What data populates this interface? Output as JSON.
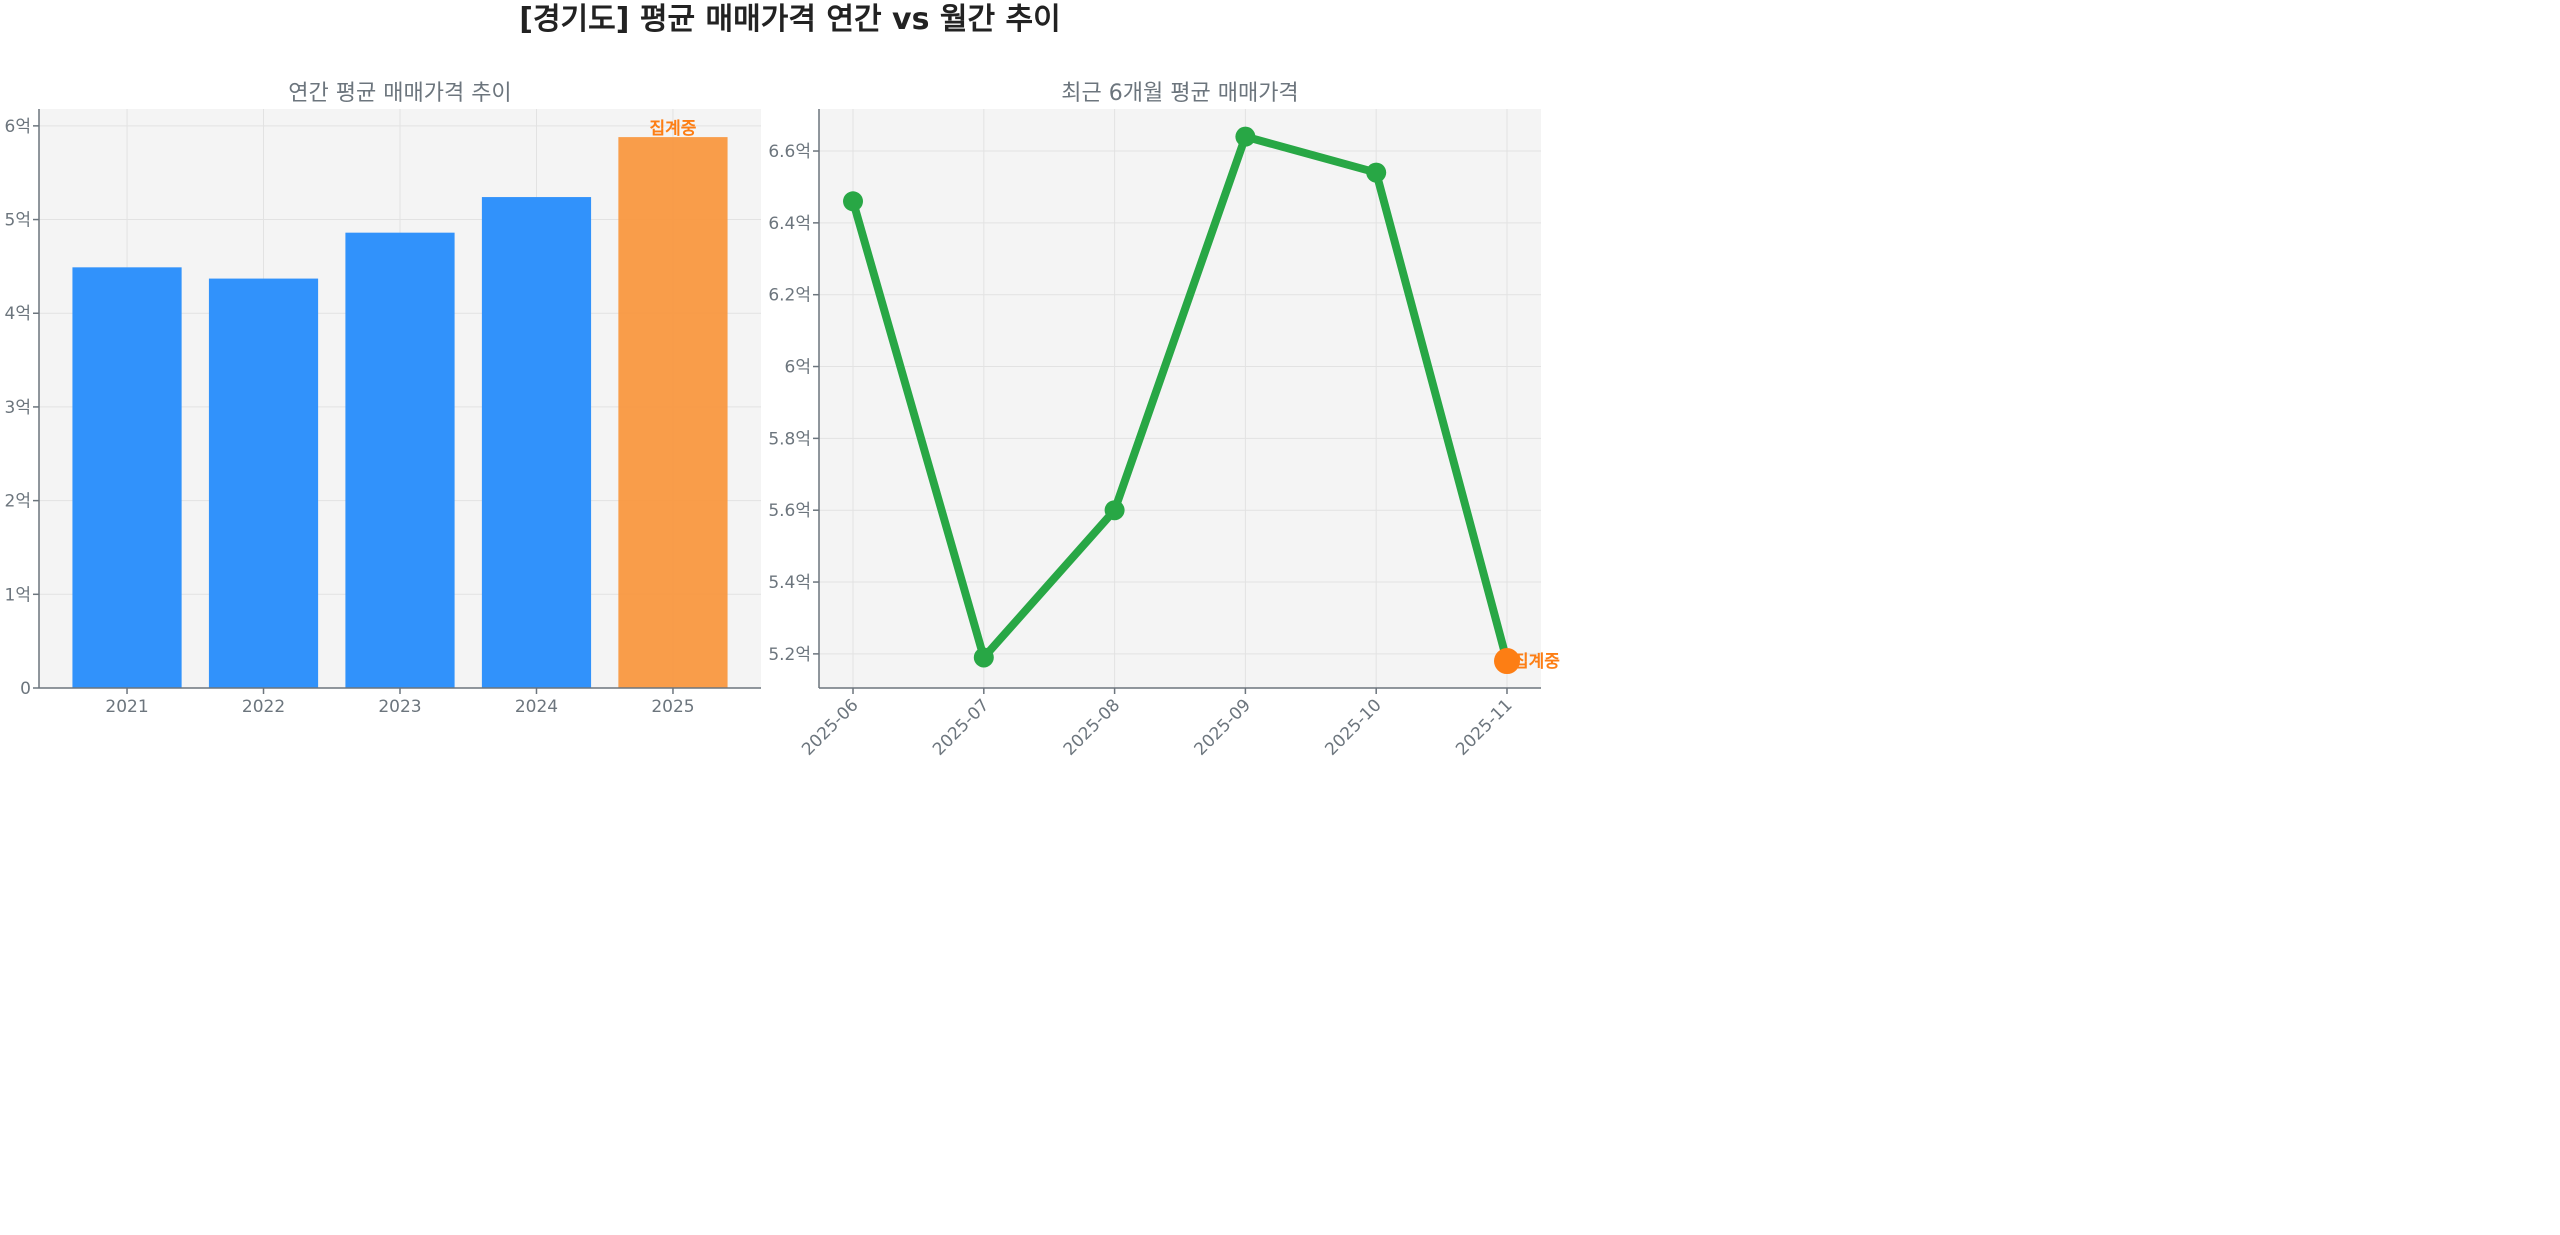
{
  "title": "[경기도] 평균 매매가격 연간 vs 월간 추이",
  "colors": {
    "bar": "#3192fb",
    "bar_highlight": "#f99840",
    "line": "#28a745",
    "marker_highlight": "#fd7e14",
    "annotation": "#fd7e14",
    "axis_text": "#6c757d",
    "plot_bg": "#f4f4f4"
  },
  "chart_data": [
    {
      "type": "bar",
      "title": "연간 평균 매매가격 추이",
      "categories": [
        "2021",
        "2022",
        "2023",
        "2024",
        "2025"
      ],
      "values": [
        4.49,
        4.37,
        4.86,
        5.24,
        5.88
      ],
      "unit": "억",
      "ylim": [
        0,
        6.18
      ],
      "yticks": [
        0,
        1,
        2,
        3,
        4,
        5,
        6
      ],
      "ytick_labels": [
        "0",
        "1억",
        "2억",
        "3억",
        "4억",
        "5억",
        "6억"
      ],
      "highlight_index": 4,
      "annotation": {
        "category": "2025",
        "text": "집계중"
      },
      "grid": true
    },
    {
      "type": "line",
      "title": "최근 6개월 평균 매매가격",
      "categories": [
        "2025-06",
        "2025-07",
        "2025-08",
        "2025-09",
        "2025-10",
        "2025-11"
      ],
      "values": [
        6.46,
        5.19,
        5.6,
        6.64,
        6.54,
        5.18
      ],
      "unit": "억",
      "ylim": [
        5.105,
        6.717
      ],
      "yticks": [
        5.2,
        5.4,
        5.6,
        5.8,
        6.0,
        6.2,
        6.4,
        6.6
      ],
      "ytick_labels": [
        "5.2억",
        "5.4억",
        "5.6억",
        "5.8억",
        "6억",
        "6.2억",
        "6.4억",
        "6.6억"
      ],
      "highlight_index": 5,
      "annotation": {
        "category": "2025-11",
        "text": "집계중"
      },
      "grid": true
    }
  ]
}
